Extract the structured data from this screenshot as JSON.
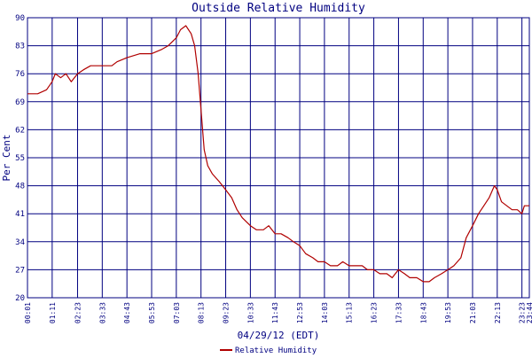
{
  "chart_data": {
    "type": "line",
    "title": "Outside Relative Humidity",
    "xlabel": "04/29/12 (EDT)",
    "ylabel": "Per Cent",
    "ylim": [
      20,
      90
    ],
    "yticks": [
      20,
      27,
      34,
      41,
      48,
      55,
      62,
      69,
      76,
      83,
      90
    ],
    "xticks": [
      "00:01",
      "01:11",
      "02:23",
      "03:33",
      "04:43",
      "05:53",
      "07:03",
      "08:13",
      "09:23",
      "10:33",
      "11:43",
      "12:53",
      "14:03",
      "15:13",
      "16:23",
      "17:33",
      "18:43",
      "19:53",
      "21:03",
      "22:13",
      "23:23",
      "23:44"
    ],
    "grid": true,
    "legend_position": "bottom",
    "series": [
      {
        "name": "Relative Humidity",
        "color": "#b00000",
        "x": [
          "00:01",
          "00:30",
          "00:55",
          "01:11",
          "01:20",
          "01:35",
          "01:50",
          "02:05",
          "02:23",
          "02:40",
          "03:00",
          "03:33",
          "04:00",
          "04:15",
          "04:43",
          "05:20",
          "05:53",
          "06:20",
          "06:40",
          "07:03",
          "07:15",
          "07:30",
          "07:45",
          "07:55",
          "08:05",
          "08:13",
          "08:22",
          "08:32",
          "08:45",
          "08:55",
          "09:05",
          "09:23",
          "09:40",
          "09:55",
          "10:10",
          "10:33",
          "10:50",
          "11:10",
          "11:25",
          "11:43",
          "12:00",
          "12:20",
          "12:35",
          "12:53",
          "13:10",
          "13:30",
          "13:45",
          "14:03",
          "14:20",
          "14:40",
          "14:55",
          "15:13",
          "15:30",
          "15:50",
          "16:05",
          "16:23",
          "16:40",
          "17:00",
          "17:15",
          "17:33",
          "17:50",
          "18:05",
          "18:25",
          "18:43",
          "19:00",
          "19:15",
          "19:35",
          "19:53",
          "20:10",
          "20:30",
          "20:45",
          "21:03",
          "21:20",
          "21:35",
          "21:50",
          "22:00",
          "22:05",
          "22:13",
          "22:25",
          "22:40",
          "22:55",
          "23:10",
          "23:23",
          "23:30",
          "23:44"
        ],
        "y": [
          71,
          71,
          72,
          74,
          76,
          75,
          76,
          74,
          76,
          77,
          78,
          78,
          78,
          79,
          80,
          81,
          81,
          82,
          83,
          85,
          87,
          88,
          86,
          83,
          76,
          67,
          57,
          53,
          51,
          50,
          49,
          47,
          45,
          42,
          40,
          38,
          37,
          37,
          38,
          36,
          36,
          35,
          34,
          33,
          31,
          30,
          29,
          29,
          28,
          28,
          29,
          28,
          28,
          28,
          27,
          27,
          26,
          26,
          25,
          27,
          26,
          25,
          25,
          24,
          24,
          25,
          26,
          27,
          28,
          30,
          35,
          38,
          41,
          43,
          45,
          47,
          48,
          47,
          44,
          43,
          42,
          42,
          41,
          43,
          43
        ]
      }
    ]
  }
}
